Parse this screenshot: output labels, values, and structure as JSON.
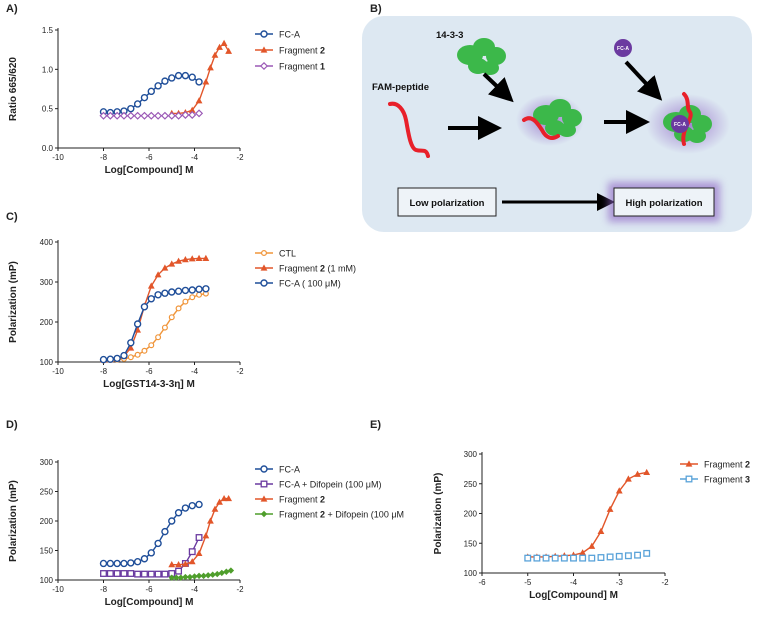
{
  "panels": {
    "A": "A)",
    "B": "B)",
    "C": "C)",
    "D": "D)",
    "E": "E)"
  },
  "colors": {
    "fca": "#1f4e99",
    "frag2": "#e2562a",
    "frag1": "#9b59b6",
    "ctl": "#f0953a",
    "difopein": "#6a3aa0",
    "frag2dif": "#4f9e2c",
    "frag3": "#5aa3d9",
    "protein": "#3cb84a",
    "peptide": "#e8202a",
    "fca_dot": "#6b3aa0",
    "diag_bg": "#dde8f2"
  },
  "diagram": {
    "protein_label": "14-3-3",
    "peptide_label": "FAM-peptide",
    "fca_label": "FC-A",
    "low_label": "Low polarization",
    "high_label": "High polarization"
  },
  "chart_data": [
    {
      "id": "A",
      "type": "scatter",
      "title": "",
      "xlabel": "Log[Compound] M",
      "ylabel": "Ratio 665/620",
      "xlim": [
        -10,
        -2
      ],
      "ylim": [
        0,
        1.5
      ],
      "xticks": [
        "-10",
        "-8",
        "-6",
        "-4",
        "-2"
      ],
      "yticks": [
        "0.0",
        "0.5",
        "1.0",
        "1.5"
      ],
      "series": [
        {
          "name": "FC-A",
          "label_main": "FC-A",
          "label_bold": "",
          "color_key": "fca",
          "marker": "circle-open",
          "fit": true,
          "x": [
            -8.0,
            -7.7,
            -7.4,
            -7.1,
            -6.8,
            -6.5,
            -6.2,
            -5.9,
            -5.6,
            -5.3,
            -5.0,
            -4.7,
            -4.4,
            -4.1,
            -3.8
          ],
          "y": [
            0.46,
            0.45,
            0.46,
            0.47,
            0.5,
            0.56,
            0.64,
            0.72,
            0.79,
            0.85,
            0.89,
            0.92,
            0.92,
            0.9,
            0.84
          ]
        },
        {
          "name": "Fragment 2",
          "label_main": "Fragment ",
          "label_bold": "2",
          "color_key": "frag2",
          "marker": "triangle",
          "fit": true,
          "x": [
            -5.0,
            -4.7,
            -4.4,
            -4.1,
            -3.8,
            -3.5,
            -3.3,
            -3.1,
            -2.9,
            -2.7,
            -2.5
          ],
          "y": [
            0.44,
            0.44,
            0.45,
            0.48,
            0.6,
            0.84,
            1.02,
            1.18,
            1.28,
            1.33,
            1.23
          ]
        },
        {
          "name": "Fragment 1",
          "label_main": "Fragment ",
          "label_bold": "1",
          "color_key": "frag1",
          "marker": "diamond-open",
          "fit": false,
          "x": [
            -8.0,
            -7.7,
            -7.4,
            -7.1,
            -6.8,
            -6.5,
            -6.2,
            -5.9,
            -5.6,
            -5.3,
            -5.0,
            -4.7,
            -4.4,
            -4.1,
            -3.8
          ],
          "y": [
            0.41,
            0.41,
            0.41,
            0.41,
            0.41,
            0.41,
            0.41,
            0.41,
            0.41,
            0.41,
            0.41,
            0.41,
            0.42,
            0.42,
            0.44
          ]
        }
      ]
    },
    {
      "id": "C",
      "type": "scatter",
      "title": "",
      "xlabel": "Log[GST14-3-3η] M",
      "ylabel": "Polarization (mP)",
      "xlim": [
        -10,
        -2
      ],
      "ylim": [
        100,
        400
      ],
      "xticks": [
        "-10",
        "-8",
        "-6",
        "-4",
        "-2"
      ],
      "yticks": [
        "100",
        "200",
        "300",
        "400"
      ],
      "series": [
        {
          "name": "CTL",
          "label_main": "CTL",
          "label_bold": "",
          "label_tail": "",
          "color_key": "ctl",
          "marker": "circle-open-small",
          "fit": true,
          "x": [
            -8.0,
            -7.7,
            -7.4,
            -7.1,
            -6.8,
            -6.5,
            -6.2,
            -5.9,
            -5.6,
            -5.3,
            -5.0,
            -4.7,
            -4.4,
            -4.1,
            -3.8,
            -3.5
          ],
          "y": [
            104,
            105,
            106,
            108,
            112,
            118,
            128,
            142,
            162,
            186,
            212,
            234,
            251,
            262,
            268,
            271
          ]
        },
        {
          "name": "Fragment 2 (1 mM)",
          "label_main": "Fragment ",
          "label_bold": "2",
          "label_tail": " (1 mM)",
          "color_key": "frag2",
          "marker": "triangle",
          "fit": true,
          "x": [
            -8.0,
            -7.7,
            -7.4,
            -7.1,
            -6.8,
            -6.5,
            -6.2,
            -5.9,
            -5.6,
            -5.3,
            -5.0,
            -4.7,
            -4.4,
            -4.1,
            -3.8,
            -3.5
          ],
          "y": [
            105,
            106,
            108,
            115,
            135,
            180,
            240,
            290,
            318,
            335,
            345,
            352,
            356,
            358,
            359,
            359
          ]
        },
        {
          "name": "FC-A (100 μM)",
          "label_main": "FC-A ( 100 μM)",
          "label_bold": "",
          "label_tail": "",
          "color_key": "fca",
          "marker": "circle-open",
          "fit": true,
          "x": [
            -8.0,
            -7.7,
            -7.4,
            -7.1,
            -6.8,
            -6.5,
            -6.2,
            -5.9,
            -5.6,
            -5.3,
            -5.0,
            -4.7,
            -4.4,
            -4.1,
            -3.8,
            -3.5
          ],
          "y": [
            106,
            107,
            109,
            116,
            148,
            195,
            238,
            258,
            268,
            272,
            275,
            277,
            279,
            280,
            282,
            283
          ]
        }
      ]
    },
    {
      "id": "D",
      "type": "scatter",
      "title": "",
      "xlabel": "Log[Compound] M",
      "ylabel": "Polarization (mP)",
      "xlim": [
        -10,
        -2
      ],
      "ylim": [
        100,
        300
      ],
      "xticks": [
        "-10",
        "-8",
        "-6",
        "-4",
        "-2"
      ],
      "yticks": [
        "100",
        "150",
        "200",
        "250",
        "300"
      ],
      "series": [
        {
          "name": "FC-A",
          "label_main": "FC-A",
          "label_bold": "",
          "label_tail": "",
          "color_key": "fca",
          "marker": "circle-open",
          "fit": true,
          "x": [
            -8.0,
            -7.7,
            -7.4,
            -7.1,
            -6.8,
            -6.5,
            -6.2,
            -5.9,
            -5.6,
            -5.3,
            -5.0,
            -4.7,
            -4.4,
            -4.1,
            -3.8
          ],
          "y": [
            128,
            128,
            128,
            128,
            129,
            131,
            136,
            146,
            162,
            182,
            200,
            214,
            222,
            226,
            228
          ]
        },
        {
          "name": "FC-A + Difopein (100 μM)",
          "label_main": "FC-A + Difopein (100 μM)",
          "label_bold": "",
          "label_tail": "",
          "color_key": "difopein",
          "marker": "square-open",
          "fit": true,
          "x": [
            -8.0,
            -7.7,
            -7.4,
            -7.1,
            -6.8,
            -6.5,
            -6.2,
            -5.9,
            -5.6,
            -5.3,
            -5.0,
            -4.7,
            -4.4,
            -4.1,
            -3.8
          ],
          "y": [
            111,
            111,
            111,
            111,
            111,
            110,
            110,
            110,
            110,
            110,
            111,
            115,
            128,
            148,
            172
          ]
        },
        {
          "name": "Fragment 2",
          "label_main": "Fragment ",
          "label_bold": "2",
          "label_tail": "",
          "color_key": "frag2",
          "marker": "triangle",
          "fit": true,
          "x": [
            -5.0,
            -4.7,
            -4.4,
            -4.1,
            -3.8,
            -3.5,
            -3.3,
            -3.1,
            -2.9,
            -2.7,
            -2.5
          ],
          "y": [
            126,
            126,
            127,
            131,
            145,
            175,
            200,
            220,
            232,
            238,
            238
          ]
        },
        {
          "name": "Fragment 2 + Difopein (100 μM)",
          "label_main": "Fragment ",
          "label_bold": "2",
          "label_tail": " + Difopein (100 μM",
          "color_key": "frag2dif",
          "marker": "diamond",
          "fit": false,
          "x": [
            -5.0,
            -4.8,
            -4.6,
            -4.4,
            -4.2,
            -4.0,
            -3.8,
            -3.6,
            -3.4,
            -3.2,
            -3.0,
            -2.8,
            -2.6,
            -2.4
          ],
          "y": [
            104,
            104,
            104,
            105,
            105,
            106,
            107,
            107,
            108,
            109,
            110,
            112,
            114,
            116
          ]
        }
      ]
    },
    {
      "id": "E",
      "type": "scatter",
      "title": "",
      "xlabel": "Log[Compound] M",
      "ylabel": "Polarization (mP)",
      "xlim": [
        -6,
        -2
      ],
      "ylim": [
        100,
        300
      ],
      "xticks": [
        "-6",
        "-5",
        "-4",
        "-3",
        "-2"
      ],
      "yticks": [
        "100",
        "150",
        "200",
        "250",
        "300"
      ],
      "series": [
        {
          "name": "Fragment 2",
          "label_main": "Fragment ",
          "label_bold": "2",
          "label_tail": "",
          "color_key": "frag2",
          "marker": "triangle",
          "fit": true,
          "x": [
            -5.0,
            -4.8,
            -4.6,
            -4.4,
            -4.2,
            -4.0,
            -3.8,
            -3.6,
            -3.4,
            -3.2,
            -3.0,
            -2.8,
            -2.6,
            -2.4
          ],
          "y": [
            127,
            127,
            127,
            128,
            129,
            130,
            134,
            145,
            170,
            207,
            238,
            258,
            266,
            269
          ]
        },
        {
          "name": "Fragment 3",
          "label_main": "Fragment ",
          "label_bold": "3",
          "label_tail": "",
          "color_key": "frag3",
          "marker": "square-open",
          "fit": false,
          "x": [
            -5.0,
            -4.8,
            -4.6,
            -4.4,
            -4.2,
            -4.0,
            -3.8,
            -3.6,
            -3.4,
            -3.2,
            -3.0,
            -2.8,
            -2.6,
            -2.4
          ],
          "y": [
            125,
            125,
            125,
            125,
            125,
            125,
            125,
            125,
            126,
            127,
            128,
            129,
            130,
            133
          ]
        }
      ]
    }
  ]
}
